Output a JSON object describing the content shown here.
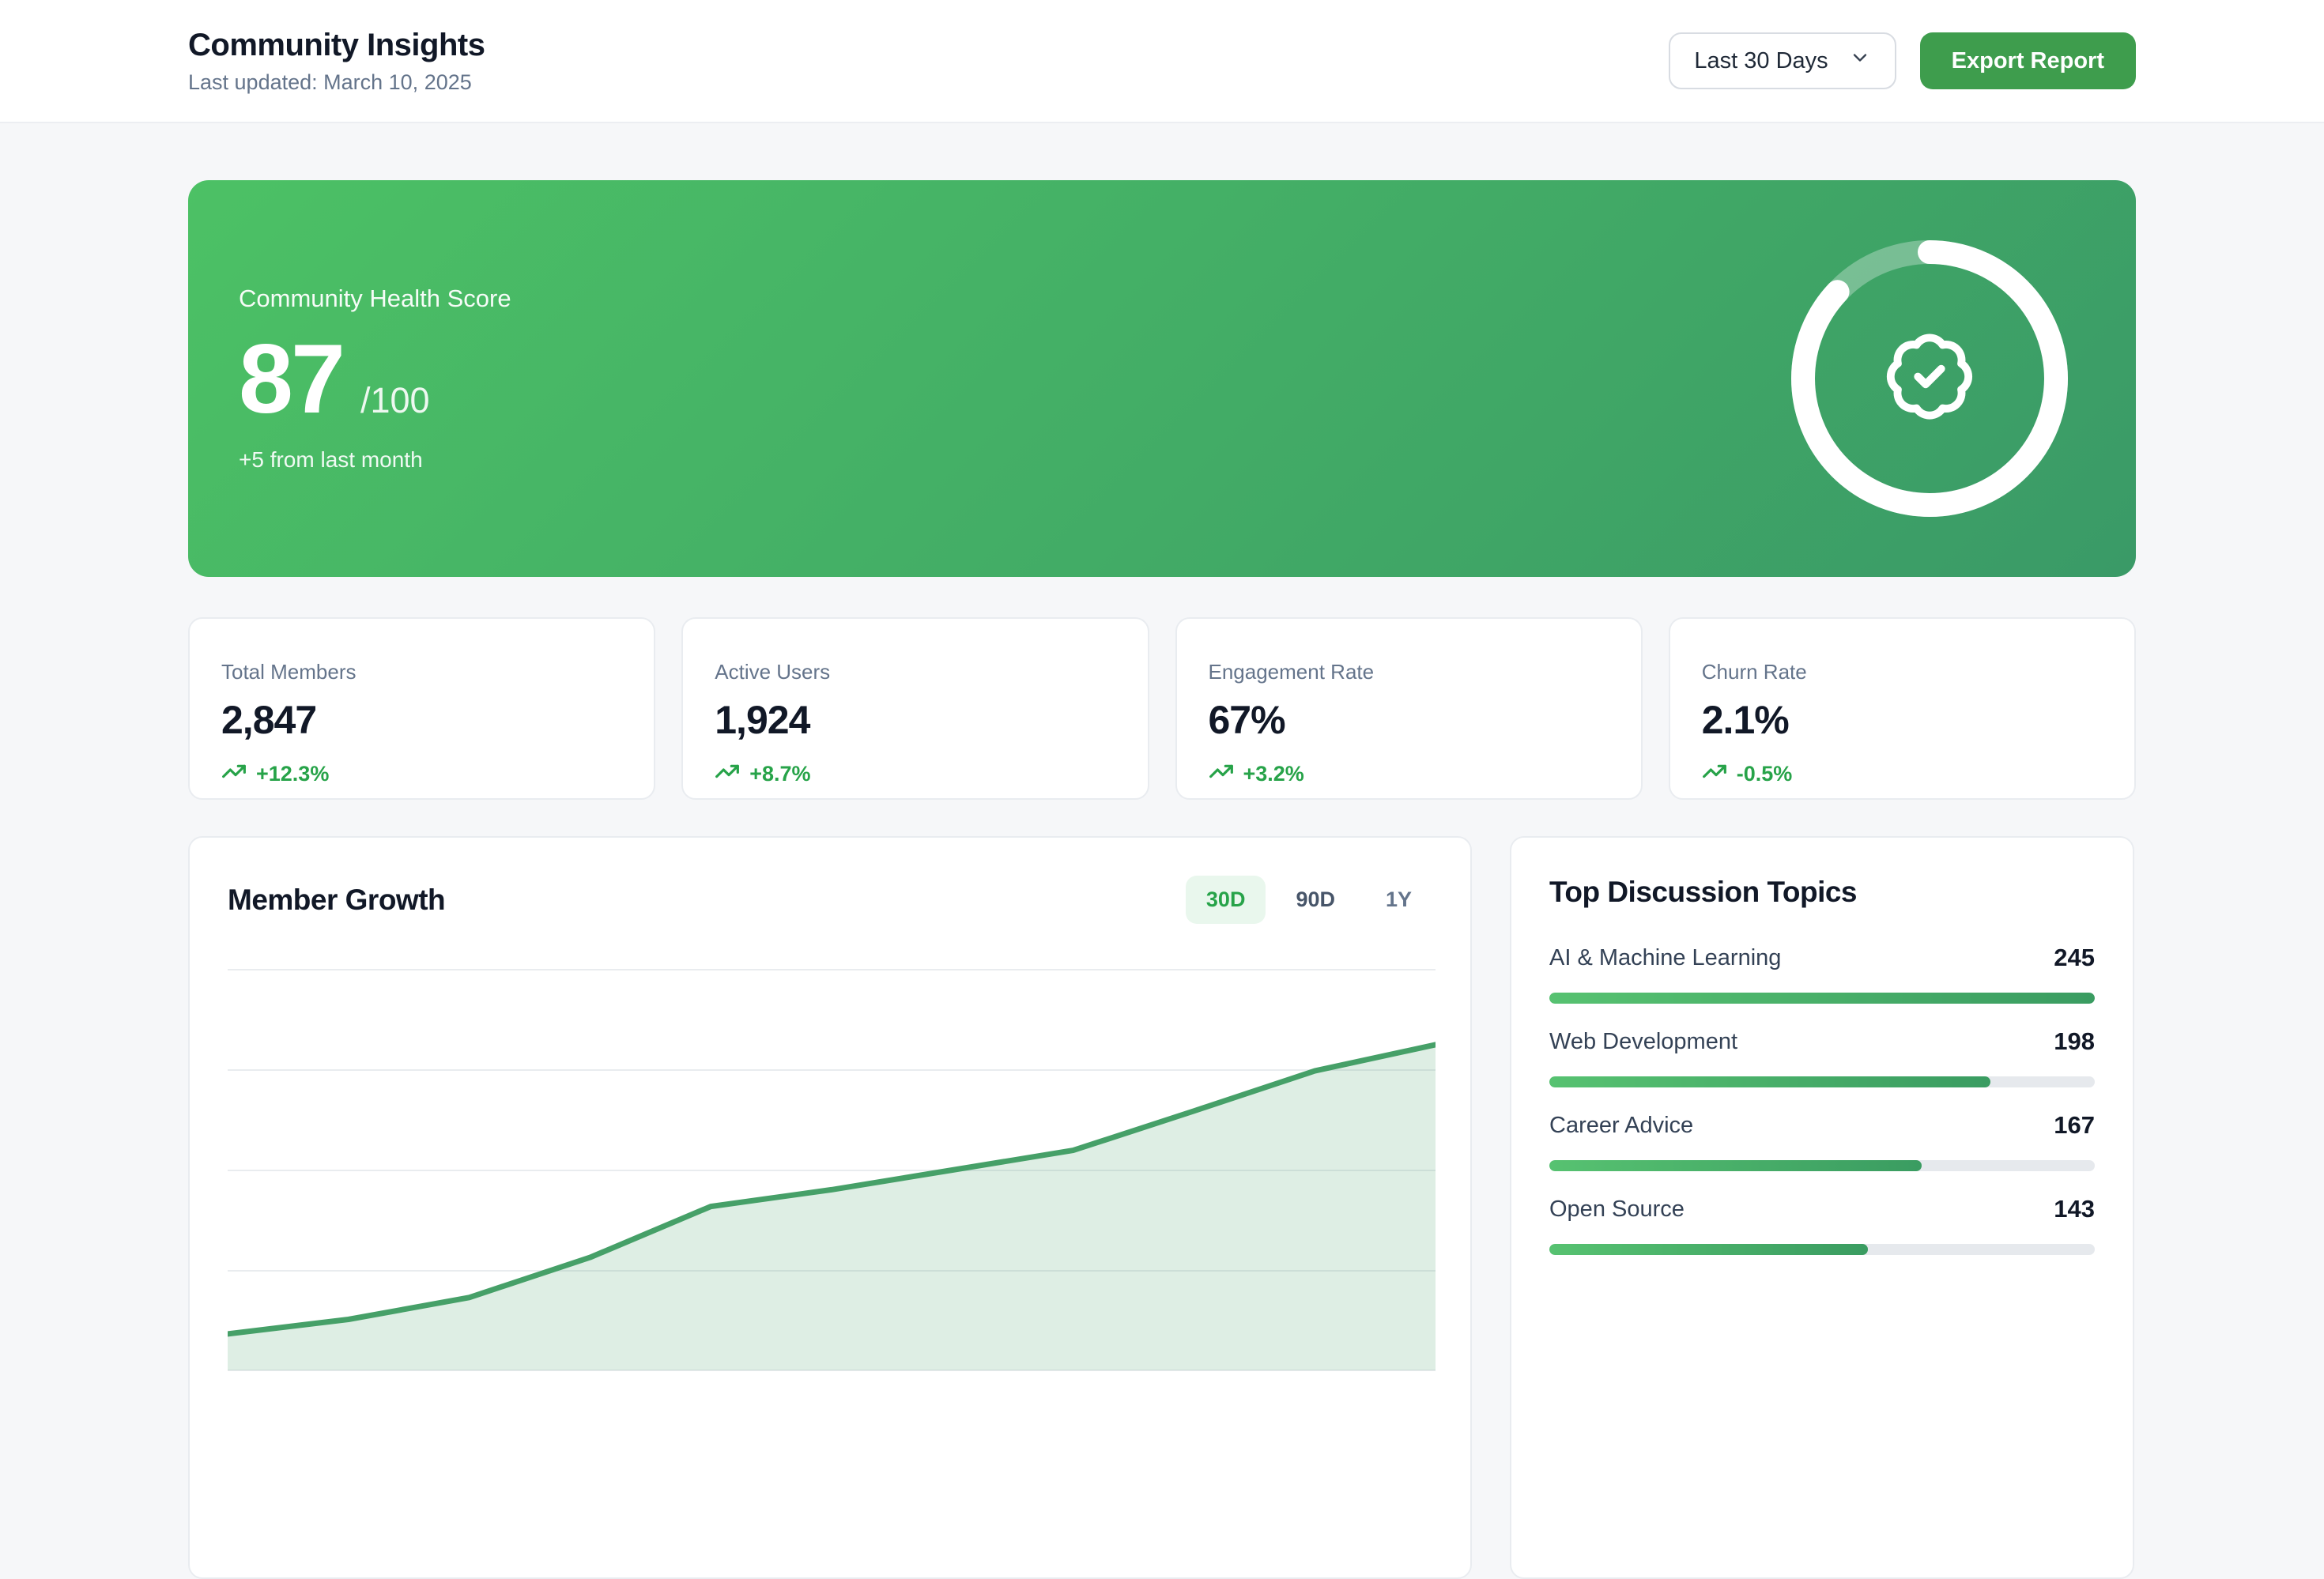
{
  "header": {
    "title": "Community Insights",
    "subtitle": "Last updated: March 10, 2025",
    "range_selector": {
      "value": "Last 30 Days"
    },
    "export_button": "Export Report"
  },
  "hero": {
    "label": "Community Health Score",
    "score": "87",
    "score_max": "/100",
    "delta": "+5 from last month",
    "progress_pct": 87
  },
  "stats": [
    {
      "label": "Total Members",
      "value": "2,847",
      "change": "+12.3%"
    },
    {
      "label": "Active Users",
      "value": "1,924",
      "change": "+8.7%"
    },
    {
      "label": "Engagement Rate",
      "value": "67%",
      "change": "+3.2%"
    },
    {
      "label": "Churn Rate",
      "value": "2.1%",
      "change": "-0.5%"
    }
  ],
  "member_growth": {
    "title": "Member Growth",
    "tabs": [
      {
        "label": "30D",
        "active": true
      },
      {
        "label": "90D",
        "active": false
      },
      {
        "label": "1Y",
        "active": false
      }
    ]
  },
  "chart_data": {
    "type": "area",
    "title": "Member Growth",
    "range": "30D",
    "values": [
      2450,
      2470,
      2500,
      2555,
      2625,
      2648,
      2675,
      2702,
      2756,
      2811,
      2847
    ],
    "ylim": [
      2400,
      2950
    ],
    "grid": true,
    "x_spacing": "even",
    "line_color": "#46a068",
    "fill_color": "rgba(70,160,104,0.18)"
  },
  "topics": {
    "title": "Top Discussion Topics",
    "max_value": 245,
    "items": [
      {
        "label": "AI & Machine Learning",
        "value": "245"
      },
      {
        "label": "Web Development",
        "value": "198"
      },
      {
        "label": "Career Advice",
        "value": "167"
      },
      {
        "label": "Open Source",
        "value": "143"
      }
    ]
  },
  "colors": {
    "accent_green": "#3e9d4d",
    "hero_gradient_start": "#4cc165",
    "hero_gradient_end": "#3a9a67",
    "trend_green": "#27a349",
    "tab_active_bg": "#e9f7ed",
    "tab_active_text": "#27a349",
    "chart_line": "#46a068",
    "bar_track": "#e6e9ed",
    "bar_gradient_start": "#57c271",
    "bar_gradient_end": "#3a9c61",
    "page_bg": "#f6f7f9"
  }
}
